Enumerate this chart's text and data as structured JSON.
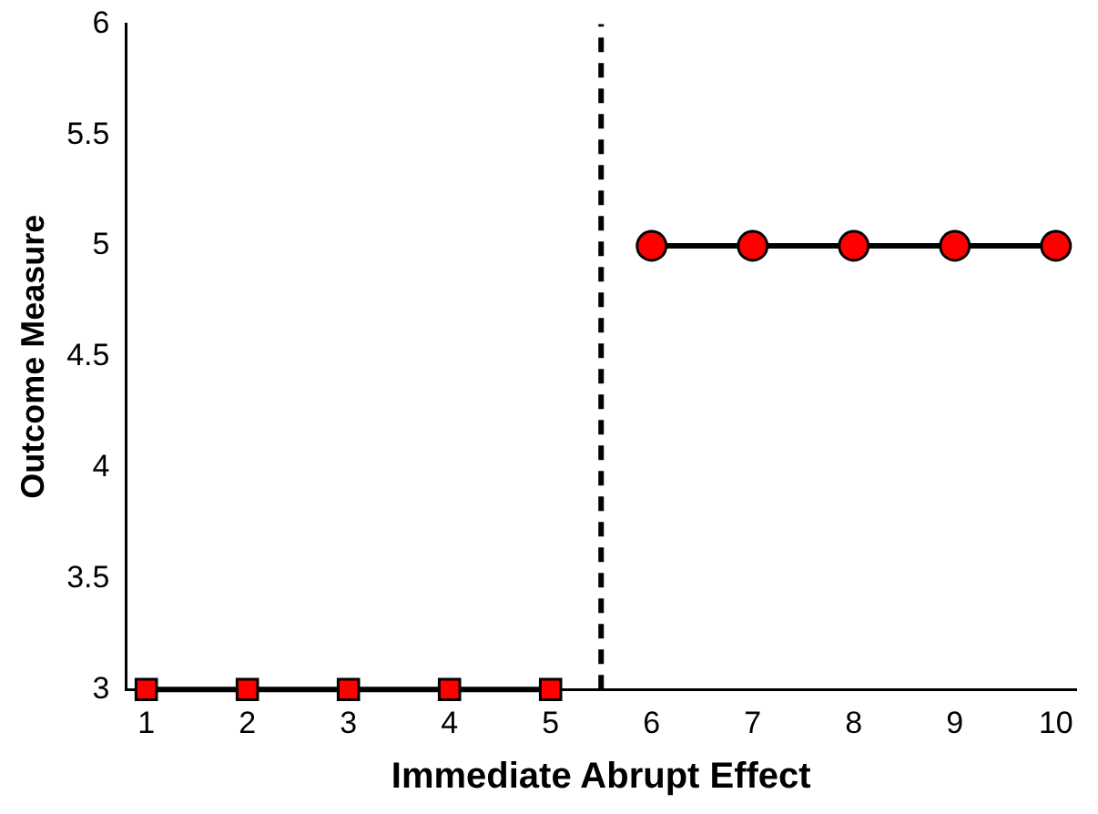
{
  "chart_data": {
    "type": "line",
    "xlabel": "Immediate Abrupt Effect",
    "ylabel": "Outcome Measure",
    "series": [
      {
        "color": "#ff0000",
        "marker": "square",
        "x": [
          1,
          2,
          3,
          4,
          5
        ],
        "values": [
          3,
          3,
          3,
          3,
          3
        ]
      },
      {
        "color": "#ff0000",
        "marker": "circle",
        "x": [
          6,
          7,
          8,
          9,
          10
        ],
        "values": [
          5,
          5,
          5,
          5,
          5
        ]
      }
    ],
    "xlim": [
      0.8,
      10.2
    ],
    "xticks": [
      1,
      2,
      3,
      4,
      5,
      6,
      7,
      8,
      9,
      10
    ],
    "ylim": [
      3,
      6
    ],
    "yticks": [
      3,
      3.5,
      4,
      4.5,
      5,
      5.5,
      6
    ],
    "grid": false,
    "legend": false,
    "ref_lines": [
      {
        "axis": "x",
        "value": 5.5,
        "line_style": "dashed"
      }
    ]
  }
}
